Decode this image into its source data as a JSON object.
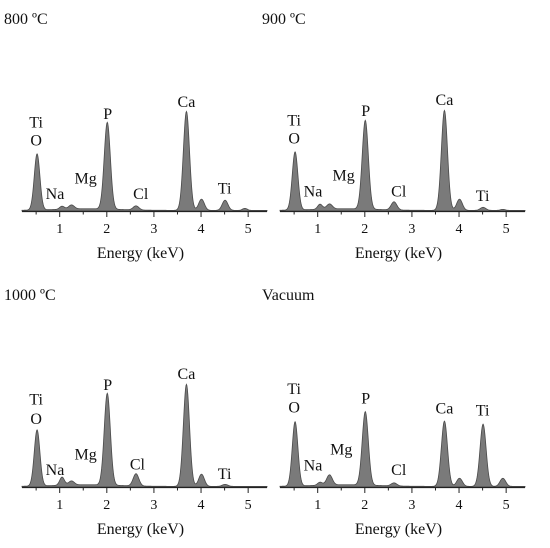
{
  "figure": {
    "colors": {
      "fill": "#7a7a7a",
      "stroke": "#4a4a4a",
      "axis": "#222222",
      "text": "#111111"
    }
  },
  "chart_data": [
    {
      "type": "area",
      "title": "800 ºC",
      "xlabel": "Energy (keV)",
      "ylabel": "",
      "xlim": [
        0.2,
        5.4
      ],
      "ylim": [
        0,
        100
      ],
      "xticks": [
        1,
        2,
        3,
        4,
        5
      ],
      "grid": false,
      "peaks": [
        {
          "x": 0.52,
          "height": 55,
          "width": 0.06
        },
        {
          "x": 1.05,
          "height": 3,
          "width": 0.05
        },
        {
          "x": 1.25,
          "height": 4,
          "width": 0.06
        },
        {
          "x": 2.01,
          "height": 85,
          "width": 0.065
        },
        {
          "x": 2.62,
          "height": 4,
          "width": 0.06
        },
        {
          "x": 3.69,
          "height": 97,
          "width": 0.065
        },
        {
          "x": 4.01,
          "height": 11,
          "width": 0.06
        },
        {
          "x": 4.51,
          "height": 10,
          "width": 0.06
        },
        {
          "x": 4.93,
          "height": 2,
          "width": 0.05
        }
      ],
      "annotations": [
        {
          "text": "Ti",
          "x": 0.5,
          "y": 82
        },
        {
          "text": "O",
          "x": 0.5,
          "y": 64
        },
        {
          "text": "Na",
          "x": 0.9,
          "y": 12
        },
        {
          "text": "Mg",
          "x": 1.55,
          "y": 27
        },
        {
          "text": "P",
          "x": 2.02,
          "y": 90
        },
        {
          "text": "Cl",
          "x": 2.72,
          "y": 12
        },
        {
          "text": "Ca",
          "x": 3.69,
          "y": 102
        },
        {
          "text": "Ti",
          "x": 4.5,
          "y": 17
        }
      ]
    },
    {
      "type": "area",
      "title": "900 ºC",
      "xlabel": "Energy (keV)",
      "ylabel": "",
      "xlim": [
        0.2,
        5.4
      ],
      "ylim": [
        0,
        100
      ],
      "xticks": [
        1,
        2,
        3,
        4,
        5
      ],
      "grid": false,
      "peaks": [
        {
          "x": 0.52,
          "height": 57,
          "width": 0.06
        },
        {
          "x": 1.05,
          "height": 5,
          "width": 0.05
        },
        {
          "x": 1.25,
          "height": 5,
          "width": 0.06
        },
        {
          "x": 2.01,
          "height": 87,
          "width": 0.065
        },
        {
          "x": 2.62,
          "height": 8,
          "width": 0.06
        },
        {
          "x": 3.69,
          "height": 98,
          "width": 0.065
        },
        {
          "x": 4.01,
          "height": 11,
          "width": 0.06
        },
        {
          "x": 4.51,
          "height": 3,
          "width": 0.06
        },
        {
          "x": 4.93,
          "height": 1,
          "width": 0.05
        }
      ],
      "annotations": [
        {
          "text": "Ti",
          "x": 0.5,
          "y": 84
        },
        {
          "text": "O",
          "x": 0.5,
          "y": 66
        },
        {
          "text": "Na",
          "x": 0.9,
          "y": 14
        },
        {
          "text": "Mg",
          "x": 1.55,
          "y": 30
        },
        {
          "text": "P",
          "x": 2.02,
          "y": 93
        },
        {
          "text": "Cl",
          "x": 2.72,
          "y": 14
        },
        {
          "text": "Ca",
          "x": 3.69,
          "y": 104
        },
        {
          "text": "Ti",
          "x": 4.5,
          "y": 10
        }
      ]
    },
    {
      "type": "area",
      "title": "1000 ºC",
      "xlabel": "Energy (keV)",
      "ylabel": "",
      "xlim": [
        0.2,
        5.4
      ],
      "ylim": [
        0,
        100
      ],
      "xticks": [
        1,
        2,
        3,
        4,
        5
      ],
      "grid": false,
      "peaks": [
        {
          "x": 0.52,
          "height": 55,
          "width": 0.06
        },
        {
          "x": 1.05,
          "height": 8,
          "width": 0.05
        },
        {
          "x": 1.25,
          "height": 4,
          "width": 0.06
        },
        {
          "x": 2.01,
          "height": 90,
          "width": 0.065
        },
        {
          "x": 2.62,
          "height": 12,
          "width": 0.06
        },
        {
          "x": 3.69,
          "height": 100,
          "width": 0.065
        },
        {
          "x": 4.01,
          "height": 12,
          "width": 0.06
        },
        {
          "x": 4.51,
          "height": 2,
          "width": 0.06
        }
      ],
      "annotations": [
        {
          "text": "Ti",
          "x": 0.5,
          "y": 81
        },
        {
          "text": "O",
          "x": 0.5,
          "y": 62
        },
        {
          "text": "Na",
          "x": 0.9,
          "y": 12
        },
        {
          "text": "Mg",
          "x": 1.55,
          "y": 27
        },
        {
          "text": "P",
          "x": 2.02,
          "y": 95
        },
        {
          "text": "Cl",
          "x": 2.65,
          "y": 17
        },
        {
          "text": "Ca",
          "x": 3.69,
          "y": 106
        },
        {
          "text": "Ti",
          "x": 4.5,
          "y": 8
        }
      ]
    },
    {
      "type": "area",
      "title": "Vacuum",
      "xlabel": "Energy (keV)",
      "ylabel": "",
      "xlim": [
        0.2,
        5.4
      ],
      "ylim": [
        0,
        100
      ],
      "xticks": [
        1,
        2,
        3,
        4,
        5
      ],
      "grid": false,
      "peaks": [
        {
          "x": 0.52,
          "height": 63,
          "width": 0.06
        },
        {
          "x": 1.05,
          "height": 3,
          "width": 0.05
        },
        {
          "x": 1.25,
          "height": 10,
          "width": 0.06
        },
        {
          "x": 2.01,
          "height": 72,
          "width": 0.065
        },
        {
          "x": 2.62,
          "height": 3,
          "width": 0.06
        },
        {
          "x": 3.69,
          "height": 64,
          "width": 0.065
        },
        {
          "x": 4.01,
          "height": 8,
          "width": 0.06
        },
        {
          "x": 4.51,
          "height": 61,
          "width": 0.065
        },
        {
          "x": 4.93,
          "height": 8,
          "width": 0.06
        }
      ],
      "annotations": [
        {
          "text": "Ti",
          "x": 0.5,
          "y": 91
        },
        {
          "text": "O",
          "x": 0.5,
          "y": 73
        },
        {
          "text": "Na",
          "x": 0.9,
          "y": 16
        },
        {
          "text": "Mg",
          "x": 1.5,
          "y": 32
        },
        {
          "text": "P",
          "x": 2.02,
          "y": 82
        },
        {
          "text": "Cl",
          "x": 2.72,
          "y": 12
        },
        {
          "text": "Ca",
          "x": 3.69,
          "y": 72
        },
        {
          "text": "Ti",
          "x": 4.5,
          "y": 70
        }
      ]
    }
  ]
}
